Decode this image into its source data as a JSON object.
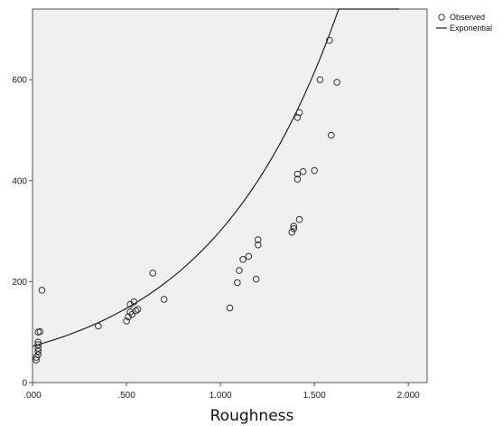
{
  "chart_data": {
    "type": "scatter",
    "title": "",
    "xlabel": "Roughness",
    "ylabel": "",
    "xlim": [
      0,
      2.1
    ],
    "ylim": [
      0,
      740
    ],
    "xticks": [
      0,
      0.5,
      1.0,
      1.5,
      2.0
    ],
    "xtick_labels": [
      ".000",
      ".500",
      "1.000",
      "1.500",
      "2.000"
    ],
    "yticks": [
      0,
      200,
      400,
      600
    ],
    "ytick_labels": [
      "0",
      "200",
      "400",
      "600"
    ],
    "grid": false,
    "background_color": "#f0f0f0",
    "legend_position": "top-right",
    "legend": [
      {
        "label": "Observed",
        "marker": "circle"
      },
      {
        "label": "Exponential",
        "marker": "line"
      }
    ],
    "series": [
      {
        "name": "Observed",
        "type": "scatter",
        "color": "#333333",
        "points": [
          [
            0.02,
            45
          ],
          [
            0.02,
            50
          ],
          [
            0.03,
            55
          ],
          [
            0.03,
            62
          ],
          [
            0.03,
            68
          ],
          [
            0.03,
            75
          ],
          [
            0.03,
            80
          ],
          [
            0.03,
            100
          ],
          [
            0.04,
            101
          ],
          [
            0.05,
            183
          ],
          [
            0.35,
            112
          ],
          [
            0.5,
            122
          ],
          [
            0.51,
            130
          ],
          [
            0.52,
            140
          ],
          [
            0.52,
            155
          ],
          [
            0.53,
            135
          ],
          [
            0.54,
            160
          ],
          [
            0.55,
            142
          ],
          [
            0.56,
            145
          ],
          [
            0.64,
            217
          ],
          [
            0.7,
            165
          ],
          [
            1.05,
            148
          ],
          [
            1.09,
            198
          ],
          [
            1.1,
            222
          ],
          [
            1.12,
            244
          ],
          [
            1.15,
            250
          ],
          [
            1.19,
            205
          ],
          [
            1.2,
            273
          ],
          [
            1.2,
            283
          ],
          [
            1.38,
            298
          ],
          [
            1.39,
            305
          ],
          [
            1.39,
            310
          ],
          [
            1.41,
            403
          ],
          [
            1.41,
            413
          ],
          [
            1.42,
            323
          ],
          [
            1.41,
            525
          ],
          [
            1.42,
            535
          ],
          [
            1.44,
            418
          ],
          [
            1.5,
            420
          ],
          [
            1.53,
            600
          ],
          [
            1.58,
            678
          ],
          [
            1.59,
            490
          ],
          [
            1.62,
            595
          ]
        ]
      },
      {
        "name": "Exponential",
        "type": "line",
        "color": "#222222",
        "fit": {
          "model": "exponential",
          "a": 72,
          "b": 1.43,
          "x_range": [
            0,
            1.95
          ]
        }
      }
    ]
  }
}
